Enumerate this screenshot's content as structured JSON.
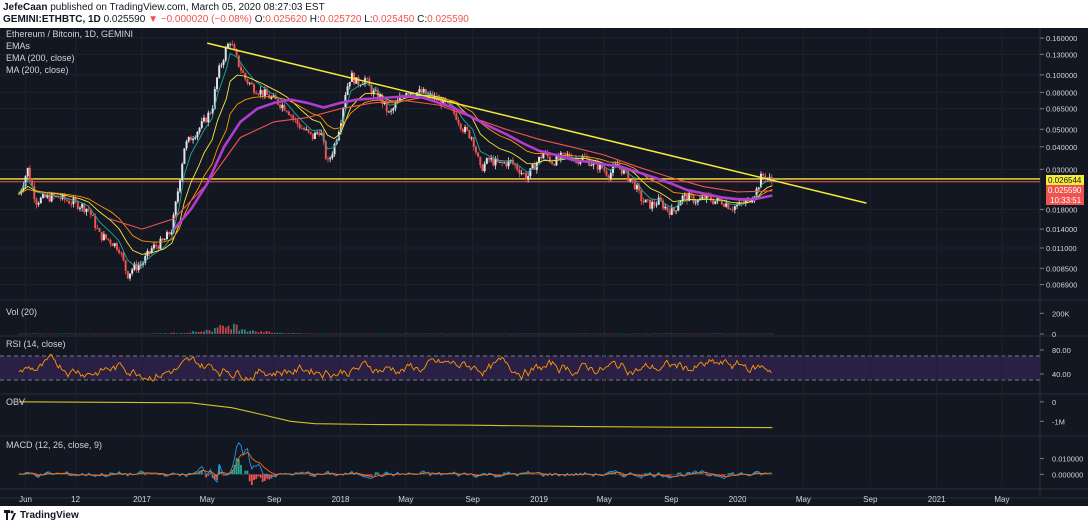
{
  "header": {
    "author": "JefeCaan",
    "published_text": "published on TradingView.com, March 05, 2020 08:27:03 EST",
    "symbol": "GEMINI:ETHBTC, 1D",
    "last": "0.025590",
    "change": "▼ −0.000020 (−0.08%)",
    "o_label": "O:",
    "o_value": "0.025620",
    "h_label": "H:",
    "h_value": "0.025720",
    "l_label": "L:",
    "l_value": "0.025450",
    "c_label": "C:",
    "c_value": "0.025590"
  },
  "legend": {
    "title": "Ethereum / Bitcoin, 1D, GEMINI",
    "emas": "EMAs",
    "ema": "EMA (200, close)",
    "ma": "MA (200, close)"
  },
  "panes": {
    "vol": "Vol (20)",
    "rsi": "RSI (14, close)",
    "obv": "OBV",
    "macd": "MACD (12, 26, close, 9)"
  },
  "price_badges": {
    "upper": "0.026544",
    "last": "0.025590",
    "countdown": "10:33:51"
  },
  "footer": {
    "brand": "TradingView"
  },
  "colors": {
    "background": "#131722",
    "grid": "#1e222d",
    "candle_up": "#e0e3eb",
    "candle_down": "#ef5350",
    "trendline": "#f5eb3b",
    "ma200": "#b23ccf",
    "ema200": "#ef5350",
    "emas": [
      "#26a69a",
      "#f5eb3b",
      "#ff9800"
    ],
    "rsi": "#ff9800",
    "rsi_band": "#2a1f45",
    "obv": "#d4c21c",
    "macd": "#2196f3",
    "signal": "#ff6d00",
    "hist_up": "#26a69a",
    "hist_down": "#ef5350",
    "badge_upper": "#f5eb3b",
    "badge_last": "#ef5350"
  },
  "chart_data": {
    "type": "line",
    "title": "Ethereum / Bitcoin, 1D, GEMINI",
    "scale": "log",
    "x_tick_labels": [
      "Jun",
      "12",
      "2017",
      "May",
      "Sep",
      "2018",
      "May",
      "Sep",
      "2019",
      "May",
      "Sep",
      "2020",
      "May",
      "Sep",
      "2021",
      "May"
    ],
    "x_ticks": [
      "2016-06-01",
      "2016-09-01",
      "2017-01-01",
      "2017-05-01",
      "2017-09-01",
      "2018-01-01",
      "2018-05-01",
      "2018-09-01",
      "2019-01-01",
      "2019-05-01",
      "2019-09-01",
      "2020-01-01",
      "2020-05-01",
      "2020-09-01",
      "2021-01-01",
      "2021-05-01"
    ],
    "x_range": [
      "2016-04-15",
      "2021-07-10"
    ],
    "y_tick_labels": [
      "0.160000",
      "0.130000",
      "0.100000",
      "0.080000",
      "0.065000",
      "0.050000",
      "0.040000",
      "0.030000",
      "0.018000",
      "0.014000",
      "0.011000",
      "0.008500",
      "0.006900"
    ],
    "y_ticks": [
      0.16,
      0.13,
      0.1,
      0.08,
      0.065,
      0.05,
      0.04,
      0.03,
      0.018,
      0.014,
      0.011,
      0.0085,
      0.0069
    ],
    "ylim": [
      0.0062,
      0.175
    ],
    "series": [
      {
        "name": "ETHBTC",
        "points": [
          [
            "2016-05-20",
            0.022
          ],
          [
            "2016-06-05",
            0.03
          ],
          [
            "2016-06-20",
            0.02
          ],
          [
            "2016-07-10",
            0.021
          ],
          [
            "2016-08-01",
            0.021
          ],
          [
            "2016-08-20",
            0.02
          ],
          [
            "2016-09-10",
            0.019
          ],
          [
            "2016-09-25",
            0.018
          ],
          [
            "2016-10-15",
            0.013
          ],
          [
            "2016-11-05",
            0.012
          ],
          [
            "2016-11-20",
            0.011
          ],
          [
            "2016-12-05",
            0.0078
          ],
          [
            "2016-12-15",
            0.0085
          ],
          [
            "2017-01-01",
            0.009
          ],
          [
            "2017-01-20",
            0.011
          ],
          [
            "2017-02-10",
            0.012
          ],
          [
            "2017-02-25",
            0.014
          ],
          [
            "2017-03-10",
            0.025
          ],
          [
            "2017-03-20",
            0.04
          ],
          [
            "2017-04-01",
            0.045
          ],
          [
            "2017-04-15",
            0.05
          ],
          [
            "2017-04-25",
            0.055
          ],
          [
            "2017-05-10",
            0.065
          ],
          [
            "2017-05-20",
            0.1
          ],
          [
            "2017-06-05",
            0.14
          ],
          [
            "2017-06-12",
            0.155
          ],
          [
            "2017-06-25",
            0.12
          ],
          [
            "2017-07-10",
            0.095
          ],
          [
            "2017-07-25",
            0.085
          ],
          [
            "2017-08-10",
            0.08
          ],
          [
            "2017-08-25",
            0.075
          ],
          [
            "2017-09-10",
            0.07
          ],
          [
            "2017-09-25",
            0.065
          ],
          [
            "2017-10-10",
            0.055
          ],
          [
            "2017-10-25",
            0.05
          ],
          [
            "2017-11-10",
            0.045
          ],
          [
            "2017-11-25",
            0.05
          ],
          [
            "2017-12-08",
            0.032
          ],
          [
            "2017-12-20",
            0.04
          ],
          [
            "2018-01-01",
            0.055
          ],
          [
            "2018-01-10",
            0.08
          ],
          [
            "2018-01-20",
            0.1
          ],
          [
            "2018-02-01",
            0.09
          ],
          [
            "2018-02-15",
            0.095
          ],
          [
            "2018-03-01",
            0.08
          ],
          [
            "2018-03-15",
            0.075
          ],
          [
            "2018-04-01",
            0.06
          ],
          [
            "2018-04-15",
            0.07
          ],
          [
            "2018-05-01",
            0.082
          ],
          [
            "2018-05-15",
            0.08
          ],
          [
            "2018-06-01",
            0.08
          ],
          [
            "2018-06-20",
            0.075
          ],
          [
            "2018-07-10",
            0.07
          ],
          [
            "2018-08-01",
            0.06
          ],
          [
            "2018-08-15",
            0.05
          ],
          [
            "2018-09-01",
            0.045
          ],
          [
            "2018-09-15",
            0.03
          ],
          [
            "2018-10-01",
            0.034
          ],
          [
            "2018-10-20",
            0.032
          ],
          [
            "2018-11-10",
            0.033
          ],
          [
            "2018-11-25",
            0.03
          ],
          [
            "2018-12-10",
            0.027
          ],
          [
            "2018-12-25",
            0.032
          ],
          [
            "2019-01-10",
            0.037
          ],
          [
            "2019-01-25",
            0.033
          ],
          [
            "2019-02-10",
            0.035
          ],
          [
            "2019-02-25",
            0.036
          ],
          [
            "2019-03-10",
            0.034
          ],
          [
            "2019-03-25",
            0.035
          ],
          [
            "2019-04-10",
            0.032
          ],
          [
            "2019-04-25",
            0.031
          ],
          [
            "2019-05-10",
            0.028
          ],
          [
            "2019-05-25",
            0.032
          ],
          [
            "2019-06-10",
            0.028
          ],
          [
            "2019-06-25",
            0.025
          ],
          [
            "2019-07-10",
            0.02
          ],
          [
            "2019-07-25",
            0.019
          ],
          [
            "2019-08-10",
            0.02
          ],
          [
            "2019-08-25",
            0.018
          ],
          [
            "2019-09-05",
            0.0175
          ],
          [
            "2019-09-20",
            0.021
          ],
          [
            "2019-10-05",
            0.021
          ],
          [
            "2019-10-20",
            0.02
          ],
          [
            "2019-11-05",
            0.021
          ],
          [
            "2019-11-20",
            0.02
          ],
          [
            "2019-12-05",
            0.02
          ],
          [
            "2019-12-20",
            0.0185
          ],
          [
            "2020-01-05",
            0.019
          ],
          [
            "2020-01-20",
            0.02
          ],
          [
            "2020-02-05",
            0.023
          ],
          [
            "2020-02-15",
            0.028
          ],
          [
            "2020-02-25",
            0.027
          ],
          [
            "2020-03-05",
            0.02559
          ]
        ]
      },
      {
        "name": "MA (200, close)",
        "points": [
          [
            "2017-03-01",
            0.014
          ],
          [
            "2017-04-01",
            0.018
          ],
          [
            "2017-05-01",
            0.025
          ],
          [
            "2017-06-01",
            0.04
          ],
          [
            "2017-07-01",
            0.055
          ],
          [
            "2017-08-01",
            0.065
          ],
          [
            "2017-09-01",
            0.07
          ],
          [
            "2017-10-01",
            0.073
          ],
          [
            "2017-11-01",
            0.07
          ],
          [
            "2017-12-01",
            0.066
          ],
          [
            "2018-01-01",
            0.07
          ],
          [
            "2018-02-01",
            0.073
          ],
          [
            "2018-03-01",
            0.074
          ],
          [
            "2018-04-01",
            0.075
          ],
          [
            "2018-05-01",
            0.076
          ],
          [
            "2018-06-01",
            0.075
          ],
          [
            "2018-07-01",
            0.07
          ],
          [
            "2018-08-01",
            0.065
          ],
          [
            "2018-09-01",
            0.058
          ],
          [
            "2018-10-01",
            0.052
          ],
          [
            "2018-11-01",
            0.047
          ],
          [
            "2018-12-01",
            0.042
          ],
          [
            "2019-01-01",
            0.038
          ],
          [
            "2019-02-01",
            0.036
          ],
          [
            "2019-03-01",
            0.034
          ],
          [
            "2019-04-01",
            0.033
          ],
          [
            "2019-05-01",
            0.032
          ],
          [
            "2019-06-01",
            0.031
          ],
          [
            "2019-07-01",
            0.029
          ],
          [
            "2019-08-01",
            0.027
          ],
          [
            "2019-09-01",
            0.025
          ],
          [
            "2019-10-01",
            0.023
          ],
          [
            "2019-11-01",
            0.022
          ],
          [
            "2019-12-01",
            0.021
          ],
          [
            "2020-01-01",
            0.0205
          ],
          [
            "2020-02-01",
            0.0205
          ],
          [
            "2020-03-05",
            0.0215
          ]
        ]
      },
      {
        "name": "EMA (200, close)",
        "points": [
          [
            "2016-11-01",
            0.016
          ],
          [
            "2017-01-01",
            0.014
          ],
          [
            "2017-03-01",
            0.016
          ],
          [
            "2017-05-01",
            0.025
          ],
          [
            "2017-07-01",
            0.045
          ],
          [
            "2017-09-01",
            0.055
          ],
          [
            "2017-11-01",
            0.058
          ],
          [
            "2018-01-01",
            0.065
          ],
          [
            "2018-03-01",
            0.07
          ],
          [
            "2018-05-01",
            0.072
          ],
          [
            "2018-07-01",
            0.068
          ],
          [
            "2018-09-01",
            0.058
          ],
          [
            "2018-11-01",
            0.05
          ],
          [
            "2019-01-01",
            0.044
          ],
          [
            "2019-03-01",
            0.04
          ],
          [
            "2019-05-01",
            0.036
          ],
          [
            "2019-07-01",
            0.031
          ],
          [
            "2019-09-01",
            0.027
          ],
          [
            "2019-11-01",
            0.024
          ],
          [
            "2020-01-01",
            0.0225
          ],
          [
            "2020-03-05",
            0.0228
          ]
        ]
      },
      {
        "name": "Trendline",
        "points": [
          [
            "2017-05-01",
            0.15
          ],
          [
            "2020-08-25",
            0.0195
          ]
        ]
      }
    ],
    "horizontal_levels": [
      0.026544,
      0.02559
    ],
    "panes": [
      {
        "name": "Vol (20)",
        "y_tick_labels": [
          "200K",
          "0"
        ],
        "y_ticks": [
          200000,
          0
        ],
        "ylim": [
          0,
          300000
        ],
        "peak": [
          "2017-06-12",
          90000
        ]
      },
      {
        "name": "RSI (14, close)",
        "y_tick_labels": [
          "80.00",
          "40.00"
        ],
        "y_ticks": [
          80,
          40
        ],
        "ylim": [
          10,
          100
        ],
        "band": [
          30,
          70
        ]
      },
      {
        "name": "OBV",
        "y_tick_labels": [
          "0",
          "-1M"
        ],
        "y_ticks": [
          0,
          -1000000
        ],
        "ylim": [
          -1650000,
          300000
        ],
        "points": [
          [
            "2016-05-20",
            0
          ],
          [
            "2017-04-01",
            -50000
          ],
          [
            "2017-05-01",
            -150000
          ],
          [
            "2017-06-15",
            -300000
          ],
          [
            "2017-08-01",
            -600000
          ],
          [
            "2017-10-01",
            -1000000
          ],
          [
            "2017-11-15",
            -1120000
          ],
          [
            "2018-03-01",
            -1160000
          ],
          [
            "2018-09-01",
            -1200000
          ],
          [
            "2019-03-01",
            -1260000
          ],
          [
            "2019-09-01",
            -1300000
          ],
          [
            "2020-03-05",
            -1320000
          ]
        ]
      },
      {
        "name": "MACD (12, 26, close, 9)",
        "y_tick_labels": [
          "0.010000",
          "0.000000"
        ],
        "y_ticks": [
          0.01,
          0
        ],
        "ylim": [
          -0.008,
          0.023
        ]
      }
    ]
  }
}
